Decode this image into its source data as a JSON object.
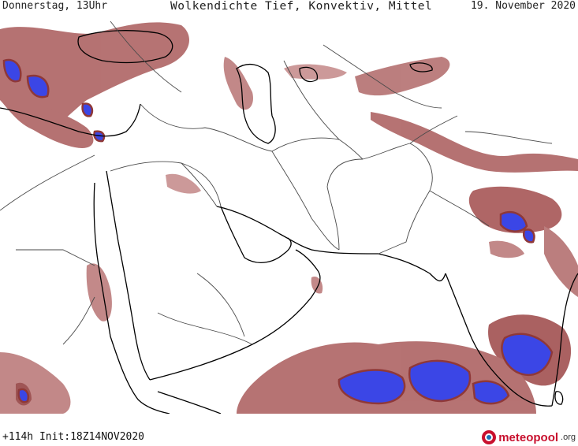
{
  "header": {
    "left": "Donnerstag, 13Uhr",
    "center": "Wolkendichte  Tief, Konvektiv, Mittel",
    "right": "19. November 2020"
  },
  "footer": {
    "run_info": "+114h Init:18Z14NOV2020",
    "brand_name": "meteopool",
    "brand_tld": ".org"
  },
  "colors": {
    "background": "#ffffff",
    "coastline": "#000000",
    "borders": "#4a4a4a",
    "cloud_light": "#c99090",
    "cloud_medium": "#a95a5a",
    "cloud_dense": "#8f3838",
    "convective": "#3b46e6"
  }
}
